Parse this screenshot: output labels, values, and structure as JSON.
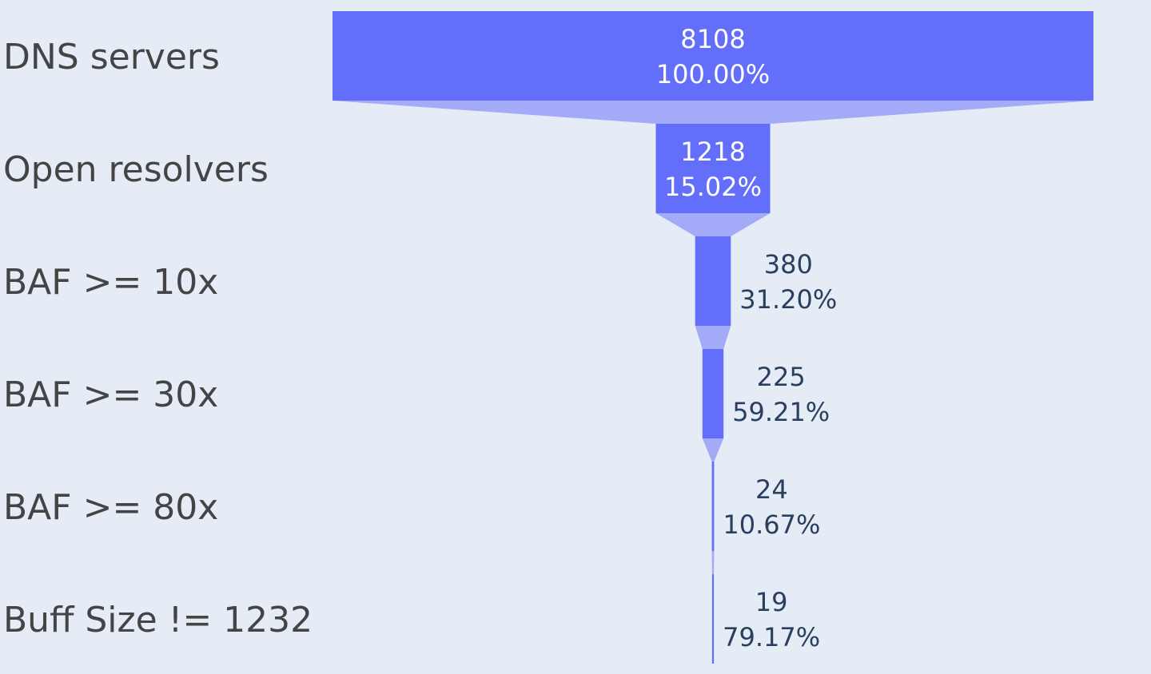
{
  "chart_data": {
    "type": "funnel",
    "title": "",
    "categories": [
      "DNS servers",
      "Open resolvers",
      "BAF >= 10x",
      "BAF >= 30x",
      "BAF >= 80x",
      "Buff Size != 1232"
    ],
    "values": [
      8108,
      1218,
      380,
      225,
      24,
      19
    ],
    "percent_previous": [
      "100.00%",
      "15.02%",
      "31.20%",
      "59.21%",
      "10.67%",
      "79.17%"
    ],
    "value_labels": [
      "8108",
      "1218",
      "380",
      "225",
      "24",
      "19"
    ],
    "colors": {
      "bar": "#636efa",
      "connector": "#a3aaf8",
      "background": "#e5ecf6",
      "label_inside": "#ffffff",
      "label_outside": "#2a3f5f",
      "axis_text": "#444444"
    }
  }
}
